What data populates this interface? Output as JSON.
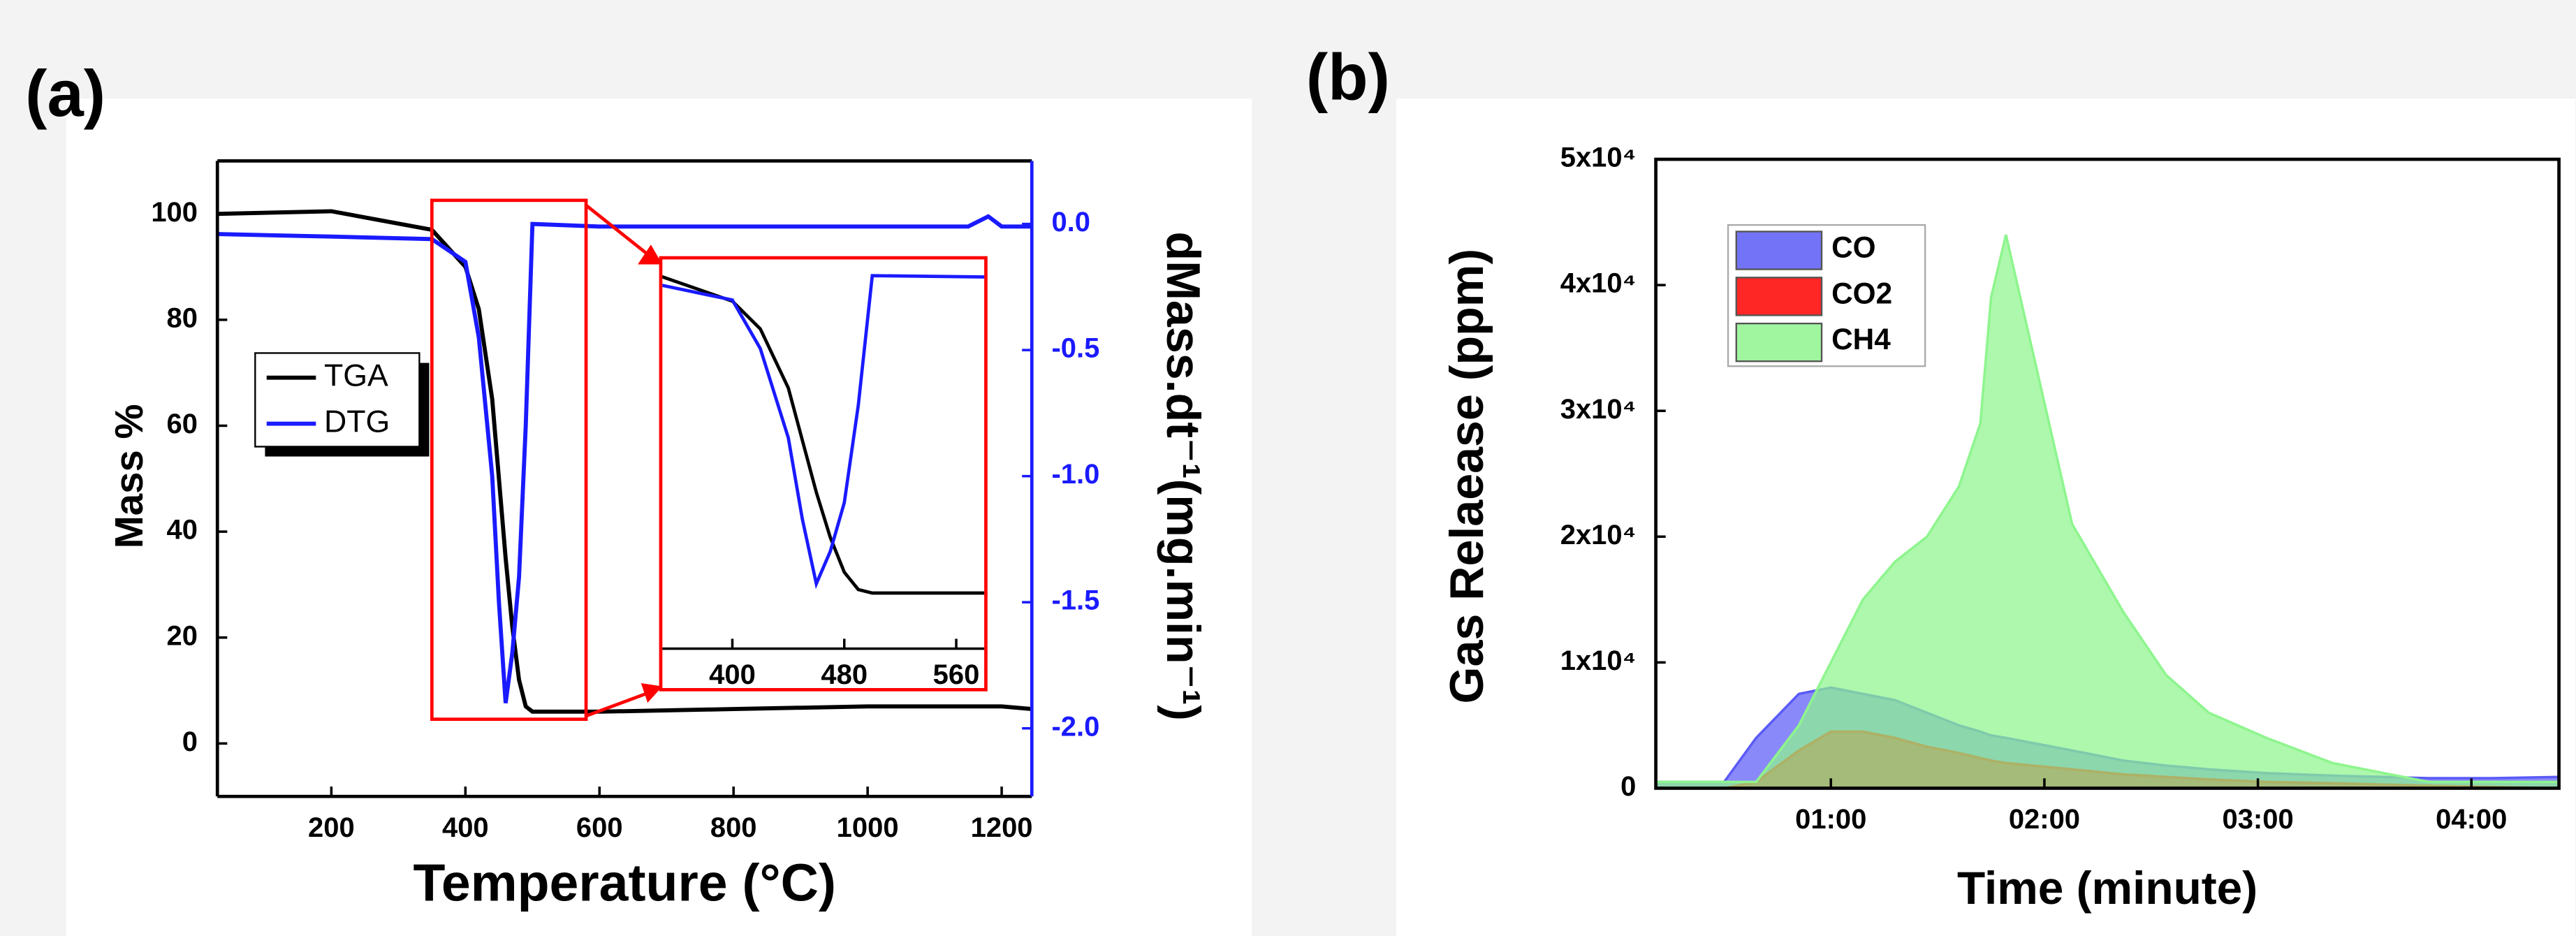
{
  "chart_data": [
    {
      "type": "line",
      "panel": "(a)",
      "xlabel": "Temperature (°C)",
      "ylabel": "Mass %",
      "y2label": "dMass.dt⁻¹(mg.min⁻¹)",
      "x": [
        30,
        200,
        350,
        400,
        420,
        440,
        450,
        460,
        470,
        480,
        490,
        500,
        600,
        800,
        1000,
        1150,
        1180,
        1200,
        1245
      ],
      "series": [
        {
          "name": "TGA",
          "color": "#000000",
          "values": [
            100,
            100.5,
            97,
            90,
            82,
            65,
            50,
            35,
            22,
            12,
            7,
            6,
            6,
            6.5,
            7,
            7,
            7,
            7,
            6.5
          ]
        },
        {
          "name": "DTG",
          "color": "#1a1aff",
          "axis": "y2",
          "values": [
            -0.04,
            -0.05,
            -0.06,
            -0.15,
            -0.45,
            -1.0,
            -1.5,
            -1.9,
            -1.7,
            -1.4,
            -0.8,
            0.0,
            -0.01,
            -0.01,
            -0.01,
            -0.01,
            0.03,
            -0.01,
            -0.01
          ]
        }
      ],
      "xlim": [
        30,
        1245
      ],
      "xticks": [
        200,
        400,
        600,
        800,
        1000,
        1200
      ],
      "ylim": [
        -10,
        110
      ],
      "yticks": [
        0,
        20,
        40,
        60,
        80,
        100
      ],
      "y2lim": [
        -2.27,
        0.25
      ],
      "y2ticks": [
        {
          "value": -2,
          "label": "-2.0"
        },
        {
          "value": -1.5,
          "label": "-1.5"
        },
        {
          "value": -1,
          "label": "-1.0"
        },
        {
          "value": -0.5,
          "label": "-0.5"
        },
        {
          "value": 0,
          "label": "0.0"
        }
      ],
      "legend": "left",
      "inset": {
        "xlim": [
          350,
          580
        ],
        "xticks": [
          400,
          480,
          560
        ],
        "ylim": [
          -10,
          102
        ],
        "y2lim": [
          -2.3,
          0.1
        ],
        "color": "#ff0000"
      }
    },
    {
      "type": "area",
      "panel": "(b)",
      "xlabel": "Time (minute)",
      "ylabel": "Gas Relaease (ppm)",
      "x": [
        0.18,
        0.5,
        0.65,
        0.85,
        1.0,
        1.15,
        1.3,
        1.45,
        1.6,
        1.7,
        1.75,
        1.82,
        2.13,
        2.37,
        2.57,
        2.77,
        3.04,
        3.35,
        3.8,
        4.1,
        4.41
      ],
      "series": [
        {
          "name": "CO",
          "color": "#5b5bf7",
          "values": [
            500,
            500,
            4000,
            7500,
            8000,
            7500,
            7000,
            6000,
            5000,
            4500,
            4200,
            4000,
            3000,
            2200,
            1800,
            1500,
            1200,
            1000,
            800,
            800,
            900
          ]
        },
        {
          "name": "CO2",
          "color": "#ff0000",
          "values": [
            0,
            0,
            500,
            3000,
            4500,
            4500,
            4000,
            3300,
            2800,
            2400,
            2200,
            2000,
            1500,
            1100,
            900,
            700,
            500,
            400,
            200,
            100,
            0
          ]
        },
        {
          "name": "CH4",
          "color": "#8ef58e",
          "values": [
            500,
            500,
            500,
            5000,
            10000,
            15000,
            18000,
            20000,
            24000,
            29000,
            39000,
            44000,
            21000,
            14000,
            9000,
            6000,
            4000,
            2000,
            500,
            500,
            500
          ]
        }
      ],
      "xlim": [
        0.18,
        4.41
      ],
      "xticks": [
        {
          "value": 1,
          "label": "01:00"
        },
        {
          "value": 2,
          "label": "02:00"
        },
        {
          "value": 3,
          "label": "03:00"
        },
        {
          "value": 4,
          "label": "04:00"
        }
      ],
      "ylim": [
        0,
        50000
      ],
      "yticks": [
        0,
        {
          "value": 10000,
          "label": "1x10⁴"
        },
        {
          "value": 20000,
          "label": "2x10⁴"
        },
        {
          "value": 30000,
          "label": "3x10⁴"
        },
        {
          "value": 40000,
          "label": "4x10⁴"
        },
        {
          "value": 50000,
          "label": "5x10⁴"
        }
      ],
      "legend": "upper left"
    }
  ]
}
